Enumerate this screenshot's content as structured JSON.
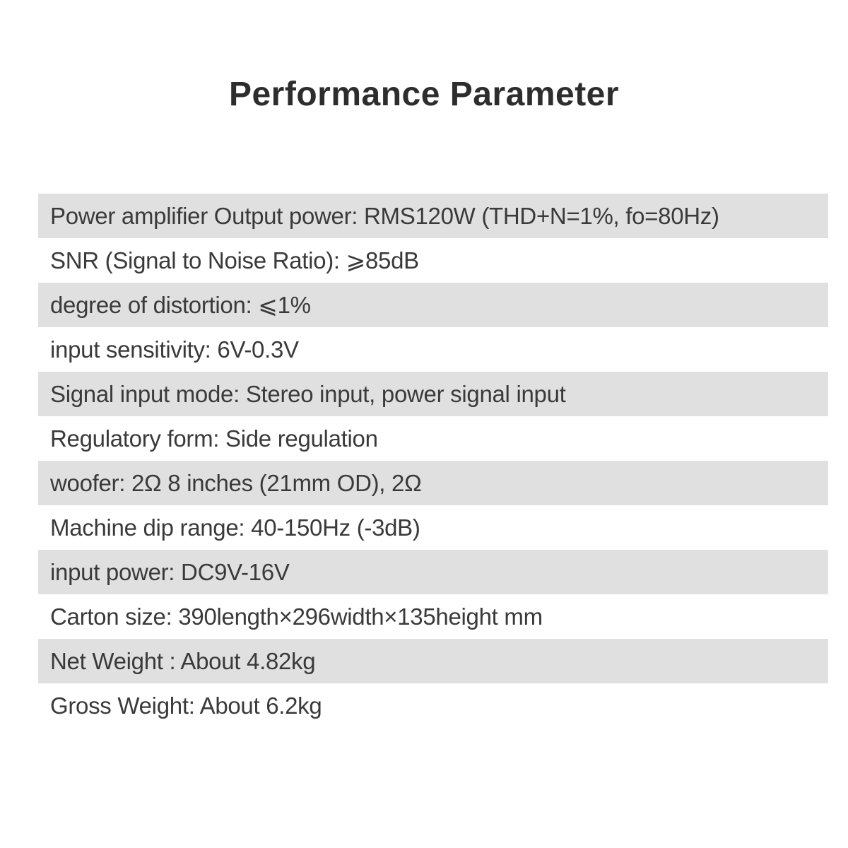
{
  "page": {
    "title": "Performance Parameter"
  },
  "colors": {
    "background": "#ffffff",
    "row_stripe": "#e0e0e0",
    "row_text": "#3a3a3a",
    "title_text": "#2d2d2d"
  },
  "table": {
    "rows": [
      {
        "text": "Power amplifier Output power: RMS120W (THD+N=1%, fo=80Hz)"
      },
      {
        "text": "SNR (Signal to Noise Ratio): ⩾85dB"
      },
      {
        "text": "degree of distortion: ⩽1%"
      },
      {
        "text": "input sensitivity: 6V-0.3V"
      },
      {
        "text": "Signal input mode: Stereo input, power signal input"
      },
      {
        "text": "Regulatory form: Side regulation"
      },
      {
        "text": "woofer: 2Ω 8 inches (21mm OD), 2Ω"
      },
      {
        "text": "Machine dip range: 40-150Hz (-3dB)"
      },
      {
        "text": "input power: DC9V-16V"
      },
      {
        "text": "Carton size: 390length×296width×135height mm"
      },
      {
        "text": "Net Weight : About 4.82kg"
      },
      {
        "text": "Gross Weight: About 6.2kg"
      }
    ]
  }
}
